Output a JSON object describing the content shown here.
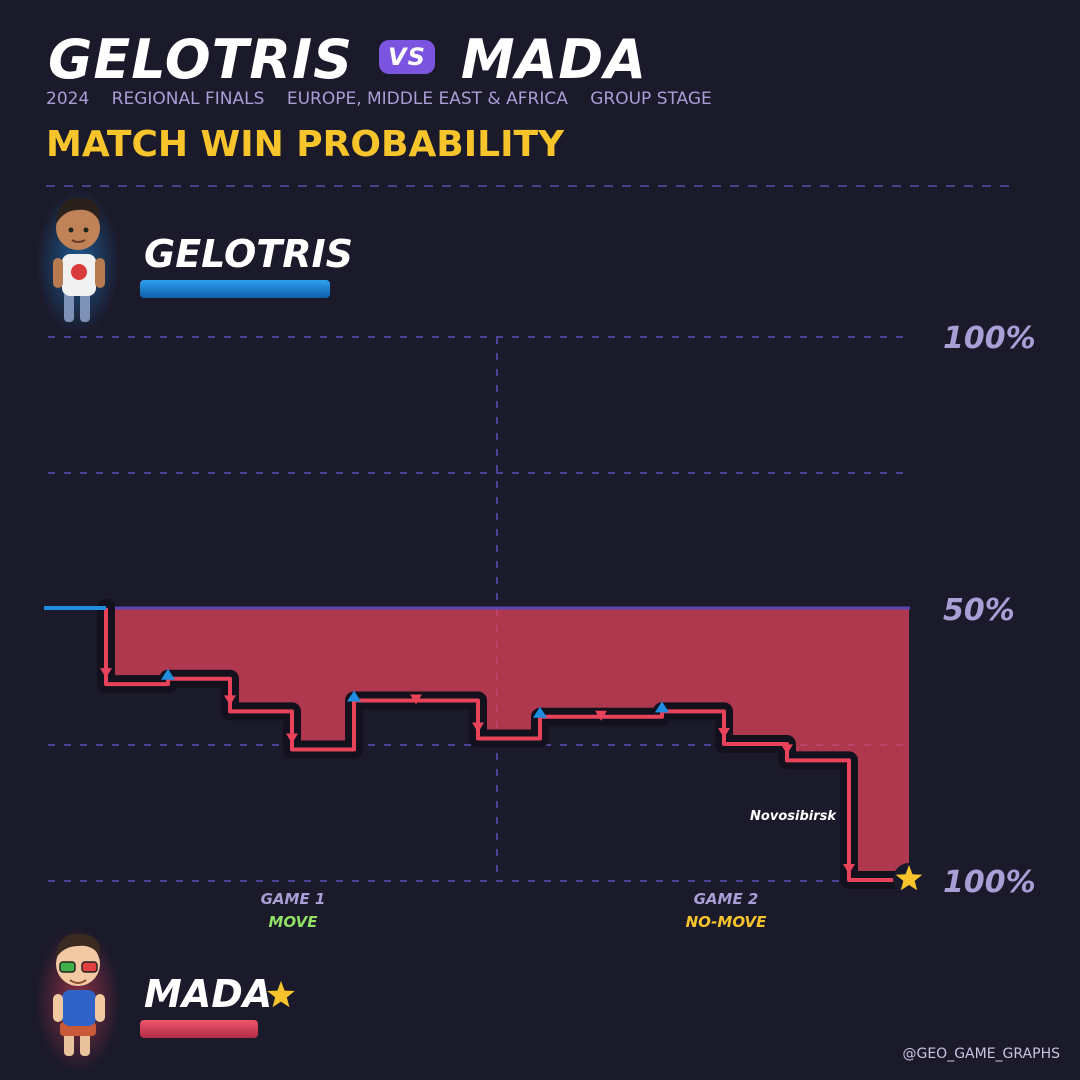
{
  "header": {
    "team_a": "GELOTRIS",
    "vs": "VS",
    "team_b": "MADA",
    "meta": [
      "2024",
      "REGIONAL FINALS",
      "EUROPE, MIDDLE EAST & AFRICA",
      "GROUP STAGE"
    ],
    "heading": "MATCH WIN PROBABILITY"
  },
  "players": {
    "top": {
      "name": "GELOTRIS",
      "color": "#1f8ee0"
    },
    "bottom": {
      "name": "MADA",
      "color": "#e8435b",
      "winner_icon": "star-icon"
    }
  },
  "chart_data": {
    "type": "line",
    "step": true,
    "y_axis_labels": {
      "top": "100%",
      "middle": "50%",
      "bottom": "100%"
    },
    "ylim": [
      0,
      100
    ],
    "y_meaning": "top player's match win probability (%)",
    "games": [
      {
        "label": "GAME 1",
        "mode": "MOVE",
        "mode_color": "#8fe063"
      },
      {
        "label": "GAME 2",
        "mode": "NO-MOVE",
        "mode_color": "#f7c52b"
      }
    ],
    "series": [
      {
        "x": [
          0,
          1,
          2,
          3,
          4,
          5,
          6,
          7,
          8,
          9,
          10,
          11,
          12,
          13,
          14
        ],
        "y": [
          50,
          36,
          37,
          31,
          24,
          33,
          33,
          26,
          30,
          30,
          31,
          25,
          22,
          0,
          0
        ]
      }
    ],
    "annotations": [
      {
        "text": "Novosibirsk",
        "x": 13
      }
    ],
    "end_marker": "star-icon"
  },
  "credit": "@GEO_GAME_GRAPHS"
}
